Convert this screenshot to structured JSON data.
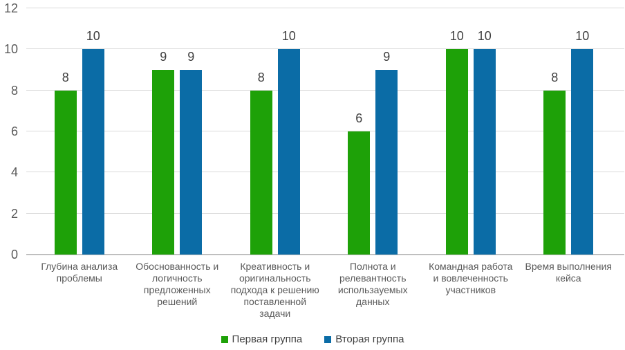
{
  "chart_data": {
    "type": "bar",
    "title": "",
    "xlabel": "",
    "ylabel": "",
    "ylim": [
      0,
      12
    ],
    "yticks": [
      0,
      2,
      4,
      6,
      8,
      10,
      12
    ],
    "grid": true,
    "data_labels": true,
    "legend_position": "bottom",
    "background_color": "#ffffff",
    "gridline_color": "#d9d9d9",
    "axis_line_color": "#bfbfbf",
    "tick_label_color": "#595959",
    "data_label_color": "#3f3f3f",
    "categories": [
      "Глубина анализа\nпроблемы",
      "Обоснованность и\nлогичность\nпредложенных\nрешений",
      "Креативность и\nоригинальность\nподхода к решению\nпоставленной\nзадачи",
      "Полнота и\nрелевантность\nиспользауемых\nданных",
      "Командная работа\nи вовлеченность\nучастников",
      "Время выполнения\nкейса"
    ],
    "series": [
      {
        "name": "Первая группа",
        "color": "#1ea108",
        "values": [
          8,
          9,
          8,
          6,
          10,
          8
        ]
      },
      {
        "name": "Вторая группа",
        "color": "#0b6ca6",
        "values": [
          10,
          9,
          10,
          9,
          10,
          10
        ]
      }
    ]
  }
}
